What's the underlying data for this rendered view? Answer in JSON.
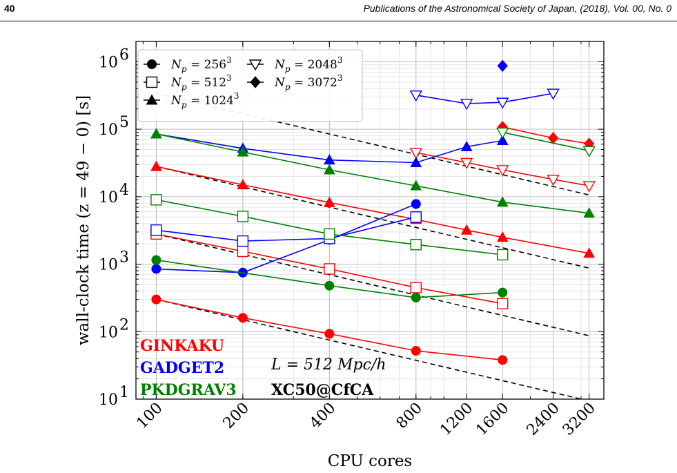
{
  "header": {
    "page_number": "40",
    "journal": "Publications of the Astronomical Society of Japan, (2018), Vol. 00, No. 0"
  },
  "chart_data": {
    "type": "line",
    "xscale": "log",
    "yscale": "log",
    "xlabel": "CPU cores",
    "ylabel": "wall-clock time (z = 49 − 0) [s]",
    "xlim": [
      85,
      3600
    ],
    "ylim": [
      10,
      2000000
    ],
    "x_ticks": [
      100,
      200,
      400,
      800,
      1200,
      1600,
      2400,
      3200
    ],
    "x_tick_labels": [
      "100",
      "200",
      "400",
      "800",
      "1200",
      "1600",
      "2400",
      "3200"
    ],
    "y_ticks": [
      10,
      100,
      1000,
      10000,
      100000,
      1000000
    ],
    "y_tick_bases": [
      "10",
      "10",
      "10",
      "10",
      "10",
      "10"
    ],
    "y_tick_exps": [
      "1",
      "2",
      "3",
      "4",
      "5",
      "6"
    ],
    "grid": true,
    "legend": {
      "position": "top-left",
      "entries": [
        {
          "marker": "circle",
          "base": "N",
          "sub": "p",
          "eq": " = 256",
          "sup": "3"
        },
        {
          "marker": "square",
          "base": "N",
          "sub": "p",
          "eq": " = 512",
          "sup": "3"
        },
        {
          "marker": "triangle-up",
          "base": "N",
          "sub": "p",
          "eq": " = 1024",
          "sup": "3"
        },
        {
          "marker": "triangle-down",
          "base": "N",
          "sub": "p",
          "eq": " = 2048",
          "sup": "3"
        },
        {
          "marker": "diamond",
          "base": "N",
          "sub": "p",
          "eq": " = 3072",
          "sup": "3"
        }
      ]
    },
    "codes": [
      {
        "name": "GINKAKU",
        "color": "#ff0000"
      },
      {
        "name": "GADGET2",
        "color": "#0000ff"
      },
      {
        "name": "PKDGRAV3",
        "color": "#008000"
      }
    ],
    "annotation_box": "L = 512 Mpc/h",
    "annotation_machine": "XC50@CfCA",
    "series": [
      {
        "code": "GINKAKU",
        "np": 256,
        "marker": "circle",
        "color": "#ff0000",
        "x": [
          100,
          200,
          400,
          800,
          1600
        ],
        "y": [
          300,
          160,
          93,
          52,
          38
        ]
      },
      {
        "code": "GINKAKU",
        "np": 512,
        "marker": "square",
        "color": "#ff0000",
        "x": [
          100,
          200,
          400,
          800,
          1600
        ],
        "y": [
          2800,
          1550,
          850,
          450,
          260
        ]
      },
      {
        "code": "GINKAKU",
        "np": 1024,
        "marker": "triangle-up",
        "color": "#ff0000",
        "x": [
          100,
          200,
          400,
          800,
          1200,
          1600,
          3200
        ],
        "y": [
          28000,
          15000,
          8200,
          4600,
          3200,
          2500,
          1450
        ]
      },
      {
        "code": "GINKAKU",
        "np": 2048,
        "marker": "triangle-down",
        "color": "#ff0000",
        "x": [
          800,
          1200,
          1600,
          2400,
          3200
        ],
        "y": [
          45000,
          32000,
          25000,
          18000,
          14500
        ]
      },
      {
        "code": "GINKAKU",
        "np": 3072,
        "marker": "diamond",
        "color": "#ff0000",
        "x": [
          1600,
          2400,
          3200
        ],
        "y": [
          108000,
          74000,
          61000
        ]
      },
      {
        "code": "GADGET2",
        "np": 256,
        "marker": "circle",
        "color": "#0000ff",
        "x": [
          100,
          200,
          400,
          800
        ],
        "y": [
          850,
          750,
          2300,
          7800
        ]
      },
      {
        "code": "GADGET2",
        "np": 512,
        "marker": "square",
        "color": "#0000ff",
        "x": [
          100,
          200,
          400,
          800
        ],
        "y": [
          3200,
          2200,
          2400,
          5000
        ]
      },
      {
        "code": "GADGET2",
        "np": 1024,
        "marker": "triangle-up",
        "color": "#0000ff",
        "x": [
          100,
          200,
          400,
          800,
          1200,
          1600
        ],
        "y": [
          85000,
          52000,
          35000,
          32000,
          55000,
          68000
        ]
      },
      {
        "code": "GADGET2",
        "np": 2048,
        "marker": "triangle-down",
        "color": "#0000ff",
        "x": [
          800,
          1200,
          1600,
          2400
        ],
        "y": [
          320000,
          240000,
          250000,
          340000
        ]
      },
      {
        "code": "GADGET2",
        "np": 3072,
        "marker": "diamond",
        "color": "#0000ff",
        "x": [
          1600
        ],
        "y": [
          870000
        ]
      },
      {
        "code": "PKDGRAV3",
        "np": 256,
        "marker": "circle",
        "color": "#008000",
        "x": [
          100,
          400,
          800,
          1600
        ],
        "y": [
          1150,
          480,
          320,
          380
        ]
      },
      {
        "code": "PKDGRAV3",
        "np": 512,
        "marker": "square",
        "color": "#008000",
        "x": [
          100,
          200,
          400,
          800,
          1600
        ],
        "y": [
          9000,
          5100,
          2800,
          1950,
          1380
        ]
      },
      {
        "code": "PKDGRAV3",
        "np": 1024,
        "marker": "triangle-up",
        "color": "#008000",
        "x": [
          100,
          200,
          400,
          800,
          1600,
          3200
        ],
        "y": [
          85000,
          46000,
          25000,
          14500,
          8300,
          5700
        ]
      },
      {
        "code": "PKDGRAV3",
        "np": 2048,
        "marker": "triangle-down",
        "color": "#008000",
        "x": [
          1600,
          3200
        ],
        "y": [
          90000,
          48000
        ]
      }
    ],
    "reference_lines": {
      "style": "dashed",
      "color": "#000000",
      "lines": [
        {
          "x": [
            100,
            3200
          ],
          "y": [
            300,
            9.4
          ]
        },
        {
          "x": [
            100,
            3200
          ],
          "y": [
            2800,
            87
          ]
        },
        {
          "x": [
            100,
            3200
          ],
          "y": [
            28000,
            875
          ]
        },
        {
          "x": [
            100,
            3200
          ],
          "y": [
            340000,
            10600
          ]
        }
      ]
    }
  }
}
